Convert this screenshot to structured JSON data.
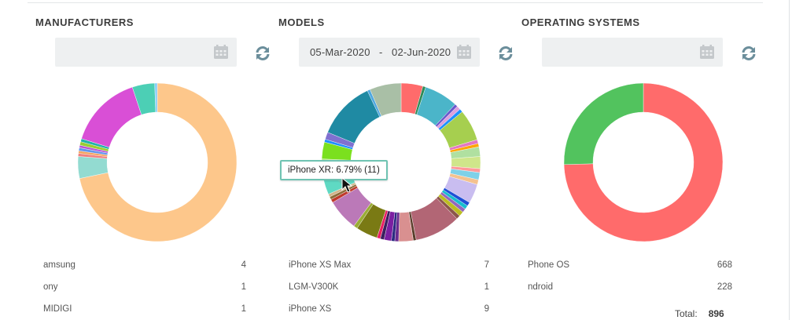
{
  "panels": [
    {
      "title": "MANUFACTURERS",
      "date_value": "",
      "rows": [
        {
          "label": "amsung",
          "value": "4"
        },
        {
          "label": "ony",
          "value": "1"
        },
        {
          "label": "MIDIGI",
          "value": "1"
        }
      ],
      "slices": [
        {
          "value": 69.0,
          "color": "#fdc78b"
        },
        {
          "value": 4.3,
          "color": "#93dbd1"
        },
        {
          "value": 0.6,
          "color": "#f08080"
        },
        {
          "value": 0.5,
          "color": "#f4a460"
        },
        {
          "value": 0.6,
          "color": "#6495ed"
        },
        {
          "value": 0.5,
          "color": "#ba55d3"
        },
        {
          "value": 0.7,
          "color": "#9acd32"
        },
        {
          "value": 0.6,
          "color": "#20b2aa"
        },
        {
          "value": 14.5,
          "color": "#d94fd6"
        },
        {
          "value": 4.4,
          "color": "#4ccfb5"
        },
        {
          "value": 0.5,
          "color": "#87cefa"
        }
      ]
    },
    {
      "title": "MODELS",
      "date_value": "05-Mar-2020   -   02-Jun-2020",
      "rows": [
        {
          "label": "iPhone XS Max",
          "value": "7"
        },
        {
          "label": "LGM-V300K",
          "value": "1"
        },
        {
          "label": "iPhone XS",
          "value": "9"
        }
      ],
      "slices": [
        {
          "value": 4.5,
          "color": "#ff6b6b"
        },
        {
          "value": 0.6,
          "color": "#2e8b57"
        },
        {
          "value": 7.0,
          "color": "#4bb5c9"
        },
        {
          "value": 0.6,
          "color": "#6a5acd"
        },
        {
          "value": 0.8,
          "color": "#dda0dd"
        },
        {
          "value": 0.7,
          "color": "#1e90ff"
        },
        {
          "value": 6.5,
          "color": "#a6cf4f"
        },
        {
          "value": 0.8,
          "color": "#e377c2"
        },
        {
          "value": 0.7,
          "color": "#ffa500"
        },
        {
          "value": 2.0,
          "color": "#b0e0a0"
        },
        {
          "value": 2.5,
          "color": "#cfe68a"
        },
        {
          "value": 0.8,
          "color": "#ff9999"
        },
        {
          "value": 1.5,
          "color": "#7fd1e8"
        },
        {
          "value": 1.0,
          "color": "#f4c28f"
        },
        {
          "value": 4.0,
          "color": "#c9bdf0"
        },
        {
          "value": 0.8,
          "color": "#1f4fd6"
        },
        {
          "value": 0.8,
          "color": "#17becf"
        },
        {
          "value": 0.8,
          "color": "#9467bd"
        },
        {
          "value": 1.0,
          "color": "#bcbd22"
        },
        {
          "value": 0.8,
          "color": "#8c564b"
        },
        {
          "value": 9.5,
          "color": "#b26675"
        },
        {
          "value": 0.6,
          "color": "#5a3d2b"
        },
        {
          "value": 3.0,
          "color": "#d99090"
        },
        {
          "value": 0.8,
          "color": "#6b2c91"
        },
        {
          "value": 0.7,
          "color": "#2b2b80"
        },
        {
          "value": 1.5,
          "color": "#7b1fa2"
        },
        {
          "value": 0.8,
          "color": "#3b1f5f"
        },
        {
          "value": 0.7,
          "color": "#e91e63"
        },
        {
          "value": 4.5,
          "color": "#7a7a14"
        },
        {
          "value": 0.8,
          "color": "#9aad35"
        },
        {
          "value": 6.5,
          "color": "#bb79b8"
        },
        {
          "value": 0.7,
          "color": "#c0392b"
        },
        {
          "value": 0.6,
          "color": "#8e6c3a"
        },
        {
          "value": 0.6,
          "color": "#d2b48c"
        },
        {
          "value": 6.79,
          "color": "#5fd9c3"
        },
        {
          "value": 0.6,
          "color": "#b8e986"
        },
        {
          "value": 3.5,
          "color": "#7be01e"
        },
        {
          "value": 0.6,
          "color": "#1e90ff"
        },
        {
          "value": 1.5,
          "color": "#8070d0"
        },
        {
          "value": 12.0,
          "color": "#1f8aa3"
        },
        {
          "value": 0.6,
          "color": "#4fa8e0"
        },
        {
          "value": 6.5,
          "color": "#a9bfa6"
        }
      ]
    },
    {
      "title": "OPERATING SYSTEMS",
      "date_value": "",
      "rows": [
        {
          "label": "Phone OS",
          "value": "668"
        },
        {
          "label": "ndroid",
          "value": "228"
        }
      ],
      "total_label": "Total:",
      "total_value": "896",
      "slices": [
        {
          "value": 668,
          "color": "#ff6b6b"
        },
        {
          "value": 228,
          "color": "#52c35e"
        }
      ]
    }
  ],
  "tooltip": {
    "text": "iPhone XR: 6.79% (11)"
  },
  "icons": {
    "calendar": "calendar-icon",
    "refresh": "refresh-icon",
    "cursor": "mouse-cursor-icon"
  },
  "colors": {
    "accent_refresh": "#6b8e9b",
    "tooltip_border": "#6fc3b2"
  }
}
